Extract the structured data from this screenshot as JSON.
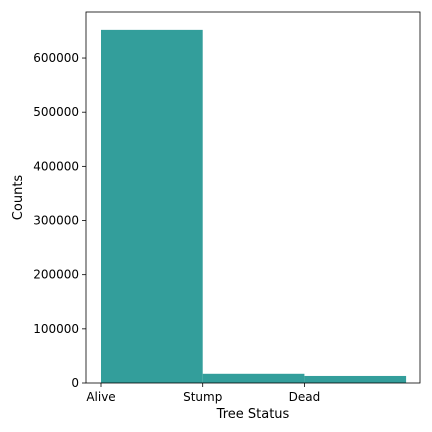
{
  "chart_data": {
    "type": "bar",
    "categories": [
      "Alive",
      "Stump",
      "Dead"
    ],
    "values": [
      652000,
      17000,
      13000
    ],
    "title": "",
    "xlabel": "Tree Status",
    "ylabel": "Counts",
    "ylim": [
      0,
      685000
    ],
    "yticks": [
      0,
      100000,
      200000,
      300000,
      400000,
      500000,
      600000
    ],
    "ytick_labels": [
      "0",
      "100000",
      "200000",
      "300000",
      "400000",
      "500000",
      "600000"
    ],
    "grid": false,
    "bar_color": "#339e9b"
  }
}
